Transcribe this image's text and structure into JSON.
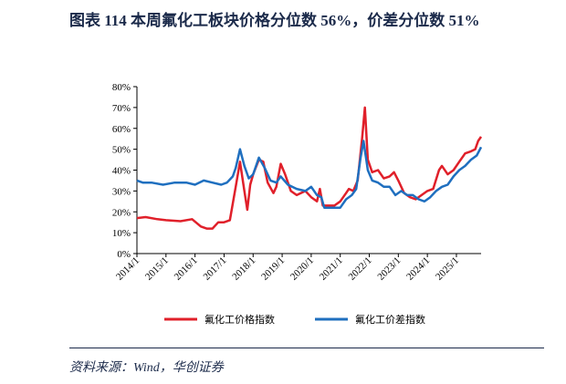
{
  "chart_data": {
    "type": "line",
    "title": "图表 114   本周氟化工板块价格分位数 56%，价差分位数 51%",
    "source": "资料来源：Wind，华创证券",
    "xlim": [
      2014.0,
      2025.85
    ],
    "xticks": [
      {
        "value": 2014,
        "label": "2014/1"
      },
      {
        "value": 2015,
        "label": "2015/1"
      },
      {
        "value": 2016,
        "label": "2016/1"
      },
      {
        "value": 2017,
        "label": "2017/1"
      },
      {
        "value": 2018,
        "label": "2018/1"
      },
      {
        "value": 2019,
        "label": "2019/1"
      },
      {
        "value": 2020,
        "label": "2020/1"
      },
      {
        "value": 2021,
        "label": "2021/1"
      },
      {
        "value": 2022,
        "label": "2022/1"
      },
      {
        "value": 2023,
        "label": "2023/1"
      },
      {
        "value": 2024,
        "label": "2024/1"
      },
      {
        "value": 2025,
        "label": "2025/1"
      }
    ],
    "ylim": [
      0,
      80
    ],
    "yticks": [
      {
        "value": 0,
        "label": "0%"
      },
      {
        "value": 10,
        "label": "10%"
      },
      {
        "value": 20,
        "label": "20%"
      },
      {
        "value": 30,
        "label": "30%"
      },
      {
        "value": 40,
        "label": "40%"
      },
      {
        "value": 50,
        "label": "50%"
      },
      {
        "value": 60,
        "label": "60%"
      },
      {
        "value": 70,
        "label": "70%"
      },
      {
        "value": 80,
        "label": "80%"
      }
    ],
    "series": [
      {
        "name": "氟化工价格指数",
        "color": "#e0202a",
        "x": [
          2014.0,
          2014.3,
          2014.7,
          2015.0,
          2015.5,
          2015.9,
          2016.2,
          2016.4,
          2016.6,
          2016.8,
          2017.0,
          2017.2,
          2017.4,
          2017.55,
          2017.7,
          2017.8,
          2017.9,
          2018.0,
          2018.2,
          2018.35,
          2018.5,
          2018.7,
          2018.8,
          2018.95,
          2019.1,
          2019.3,
          2019.5,
          2019.8,
          2020.0,
          2020.2,
          2020.3,
          2020.4,
          2020.6,
          2020.8,
          2021.0,
          2021.2,
          2021.3,
          2021.45,
          2021.6,
          2021.75,
          2021.85,
          2021.95,
          2022.1,
          2022.3,
          2022.5,
          2022.7,
          2022.85,
          2023.0,
          2023.2,
          2023.4,
          2023.6,
          2023.8,
          2024.0,
          2024.2,
          2024.4,
          2024.5,
          2024.7,
          2024.9,
          2025.1,
          2025.3,
          2025.5,
          2025.65,
          2025.75,
          2025.85
        ],
        "values": [
          17,
          17.5,
          16.5,
          16,
          15.5,
          16.5,
          13,
          12,
          12,
          15,
          15,
          16,
          32,
          44,
          30,
          21,
          33,
          38,
          45,
          44,
          34,
          29,
          32,
          43,
          38,
          30,
          28,
          30,
          27,
          25,
          31,
          23,
          23,
          23,
          25,
          29,
          31,
          30,
          35,
          55,
          70,
          45,
          39,
          40,
          36,
          37,
          39,
          35,
          29,
          27,
          26,
          28,
          30,
          31,
          40,
          42,
          38,
          40,
          44,
          48,
          49,
          50,
          54,
          56
        ]
      },
      {
        "name": "氟化工价差指数",
        "color": "#1f6fbf",
        "x": [
          2014.0,
          2014.2,
          2014.5,
          2014.9,
          2015.3,
          2015.7,
          2016.0,
          2016.3,
          2016.6,
          2016.9,
          2017.1,
          2017.3,
          2017.4,
          2017.55,
          2017.7,
          2017.85,
          2018.0,
          2018.2,
          2018.4,
          2018.6,
          2018.8,
          2018.95,
          2019.2,
          2019.5,
          2019.8,
          2020.0,
          2020.2,
          2020.35,
          2020.45,
          2020.7,
          2021.0,
          2021.2,
          2021.4,
          2021.55,
          2021.7,
          2021.8,
          2021.95,
          2022.1,
          2022.3,
          2022.5,
          2022.7,
          2022.9,
          2023.1,
          2023.3,
          2023.5,
          2023.7,
          2023.9,
          2024.1,
          2024.3,
          2024.5,
          2024.7,
          2024.9,
          2025.1,
          2025.3,
          2025.5,
          2025.7,
          2025.85
        ],
        "values": [
          35,
          34,
          34,
          33,
          34,
          34,
          33,
          35,
          34,
          33,
          34,
          37,
          41,
          50,
          42,
          36,
          38,
          46,
          41,
          35,
          34,
          37,
          33,
          31,
          30,
          32,
          28,
          27,
          22,
          22,
          22,
          26,
          28,
          31,
          46,
          54,
          40,
          35,
          34,
          32,
          32,
          28,
          30,
          28,
          28,
          26,
          25,
          27,
          30,
          32,
          33,
          37,
          40,
          42,
          45,
          47,
          51
        ]
      }
    ]
  }
}
